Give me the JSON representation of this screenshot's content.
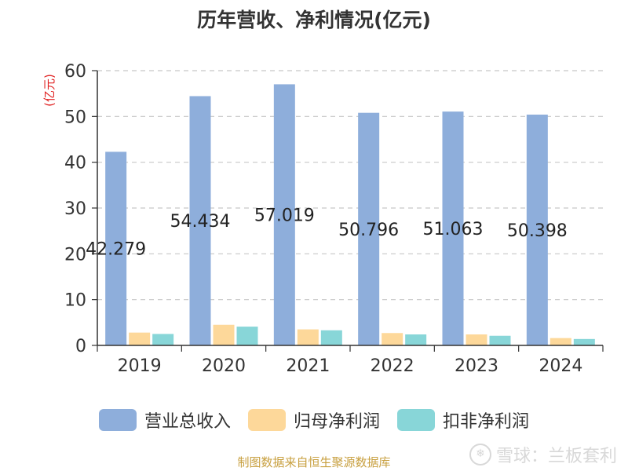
{
  "chart_data": {
    "type": "bar",
    "title": "历年营收、净利情况(亿元)",
    "ylabel": "(亿元)",
    "xlabel": "",
    "categories": [
      "2019",
      "2020",
      "2021",
      "2022",
      "2023",
      "2024"
    ],
    "ylim": [
      0,
      60
    ],
    "yticks": [
      0,
      10,
      20,
      30,
      40,
      50,
      60
    ],
    "grid": true,
    "legend_position": "bottom",
    "series": [
      {
        "name": "营业总收入",
        "color": "#8eaedb",
        "values": [
          42.279,
          54.434,
          57.019,
          50.796,
          51.063,
          50.398
        ],
        "labels": [
          "42.279",
          "54.434",
          "57.019",
          "50.796",
          "51.063",
          "50.398"
        ]
      },
      {
        "name": "归母净利润",
        "color": "#fdd89a",
        "values": [
          2.8,
          4.5,
          3.5,
          2.7,
          2.4,
          1.6
        ]
      },
      {
        "name": "扣非净利润",
        "color": "#88d6d8",
        "values": [
          2.5,
          4.1,
          3.3,
          2.4,
          2.1,
          1.4
        ]
      }
    ]
  },
  "footer": {
    "source": "制图数据来自恒生聚源数据库",
    "watermark": "雪球：兰板套利"
  }
}
